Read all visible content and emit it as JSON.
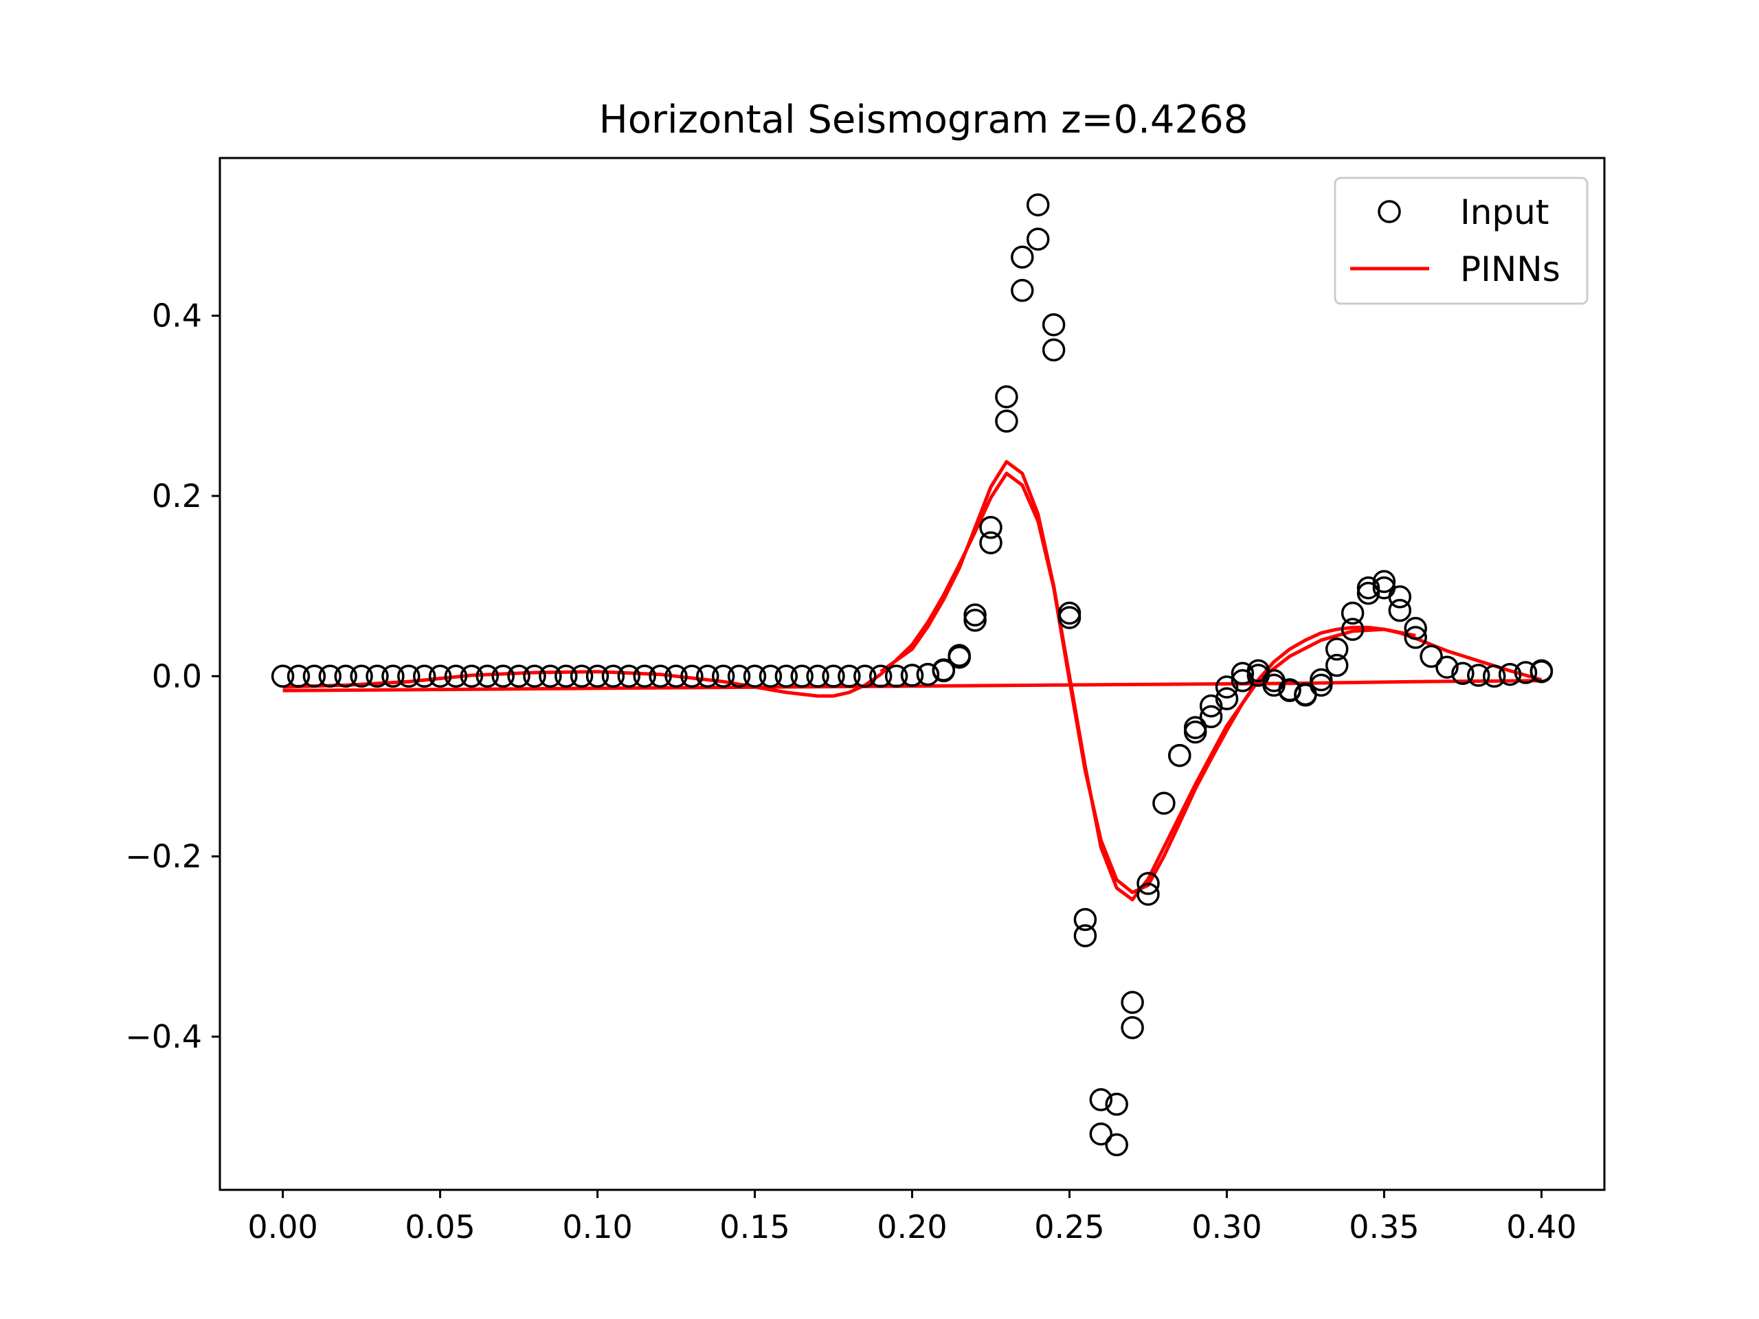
{
  "chart_data": {
    "type": "line",
    "title": "Horizontal Seismogram z=0.4268",
    "xlabel": "",
    "ylabel": "",
    "xlim": [
      -0.02,
      0.42
    ],
    "ylim": [
      -0.57,
      0.575
    ],
    "xticks": [
      "0.00",
      "0.05",
      "0.10",
      "0.15",
      "0.20",
      "0.25",
      "0.30",
      "0.35",
      "0.40"
    ],
    "xtick_values": [
      0.0,
      0.05,
      0.1,
      0.15,
      0.2,
      0.25,
      0.3,
      0.35,
      0.4
    ],
    "yticks": [
      "−0.4",
      "−0.2",
      "0.0",
      "0.2",
      "0.4"
    ],
    "ytick_values": [
      -0.4,
      -0.2,
      0.0,
      0.2,
      0.4
    ],
    "grid": false,
    "legend_position": "top-right",
    "series": [
      {
        "name": "Input",
        "style": "circles",
        "color": "#000000",
        "x": [
          0.0,
          0.005,
          0.01,
          0.015,
          0.02,
          0.025,
          0.03,
          0.035,
          0.04,
          0.045,
          0.05,
          0.055,
          0.06,
          0.065,
          0.07,
          0.075,
          0.08,
          0.085,
          0.09,
          0.095,
          0.1,
          0.105,
          0.11,
          0.115,
          0.12,
          0.125,
          0.13,
          0.135,
          0.14,
          0.145,
          0.15,
          0.155,
          0.16,
          0.165,
          0.17,
          0.175,
          0.18,
          0.185,
          0.19,
          0.195,
          0.2,
          0.205,
          0.21,
          0.215,
          0.22,
          0.225,
          0.23,
          0.235,
          0.24,
          0.245,
          0.25,
          0.255,
          0.26,
          0.265,
          0.27,
          0.275,
          0.28,
          0.285,
          0.29,
          0.295,
          0.3,
          0.305,
          0.31,
          0.315,
          0.32,
          0.325,
          0.33,
          0.335,
          0.34,
          0.345,
          0.35,
          0.355,
          0.36,
          0.365,
          0.37,
          0.375,
          0.38,
          0.385,
          0.39,
          0.395,
          0.4
        ],
        "y": [
          0.0,
          0.0,
          0.0,
          0.0,
          0.0,
          0.0,
          0.0,
          0.0,
          0.0,
          0.0,
          0.0,
          0.0,
          0.0,
          0.0,
          0.0,
          0.0,
          0.0,
          0.0,
          0.0,
          0.0,
          0.0,
          0.0,
          0.0,
          0.0,
          0.0,
          0.0,
          0.0,
          0.0,
          0.0,
          0.0,
          0.0,
          0.0,
          0.0,
          0.0,
          0.0,
          0.0,
          0.0,
          0.0,
          0.0,
          0.0,
          0.001,
          0.002,
          0.006,
          0.023,
          0.068,
          0.165,
          0.31,
          0.465,
          0.523,
          0.39,
          0.07,
          -0.27,
          -0.47,
          -0.52,
          -0.362,
          -0.23,
          -0.141,
          -0.088,
          -0.057,
          -0.033,
          -0.012,
          0.003,
          0.006,
          -0.005,
          -0.015,
          -0.021,
          -0.004,
          0.03,
          0.07,
          0.098,
          0.105,
          0.088,
          0.053,
          0.022,
          0.01,
          0.003,
          0.001,
          0.0,
          0.002,
          0.004,
          0.006
        ]
      },
      {
        "name": "",
        "style": "circles",
        "color": "#000000",
        "x": [
          0.2,
          0.205,
          0.21,
          0.215,
          0.22,
          0.225,
          0.23,
          0.235,
          0.24,
          0.245,
          0.25,
          0.255,
          0.26,
          0.265,
          0.27,
          0.275,
          0.285,
          0.29,
          0.295,
          0.3,
          0.305,
          0.31,
          0.315,
          0.32,
          0.325,
          0.33,
          0.335,
          0.34,
          0.345,
          0.35,
          0.355,
          0.36,
          0.4
        ],
        "y": [
          0.001,
          0.002,
          0.007,
          0.021,
          0.062,
          0.148,
          0.283,
          0.428,
          0.485,
          0.362,
          0.065,
          -0.288,
          -0.508,
          -0.475,
          -0.39,
          -0.242,
          -0.088,
          -0.062,
          -0.045,
          -0.025,
          -0.005,
          0.001,
          -0.01,
          -0.016,
          -0.02,
          -0.01,
          0.012,
          0.052,
          0.092,
          0.098,
          0.073,
          0.043,
          0.005
        ]
      },
      {
        "name": "PINNs",
        "style": "line",
        "color": "#ff0000",
        "x": [
          0.0,
          0.02,
          0.04,
          0.06,
          0.08,
          0.1,
          0.12,
          0.14,
          0.15,
          0.16,
          0.17,
          0.175,
          0.18,
          0.185,
          0.19,
          0.195,
          0.2,
          0.205,
          0.21,
          0.215,
          0.22,
          0.225,
          0.23,
          0.235,
          0.24,
          0.245,
          0.25,
          0.255,
          0.26,
          0.265,
          0.27,
          0.275,
          0.28,
          0.285,
          0.29,
          0.295,
          0.3,
          0.305,
          0.31,
          0.315,
          0.32,
          0.325,
          0.33,
          0.335,
          0.34,
          0.345,
          0.35,
          0.355,
          0.36,
          0.365,
          0.37,
          0.38,
          0.39,
          0.4
        ],
        "y": [
          -0.012,
          -0.01,
          -0.006,
          0.001,
          0.004,
          0.005,
          0.002,
          -0.006,
          -0.012,
          -0.018,
          -0.022,
          -0.022,
          -0.018,
          -0.01,
          0.002,
          0.018,
          0.035,
          0.06,
          0.09,
          0.124,
          0.16,
          0.198,
          0.225,
          0.212,
          0.172,
          0.098,
          -0.005,
          -0.105,
          -0.182,
          -0.226,
          -0.24,
          -0.232,
          -0.2,
          -0.163,
          -0.125,
          -0.092,
          -0.06,
          -0.03,
          -0.004,
          0.016,
          0.03,
          0.04,
          0.048,
          0.052,
          0.054,
          0.054,
          0.052,
          0.048,
          0.042,
          0.035,
          0.028,
          0.017,
          0.006,
          -0.004
        ]
      },
      {
        "name": "",
        "style": "line",
        "color": "#ff0000",
        "x": [
          0.0,
          0.04,
          0.08,
          0.12,
          0.16,
          0.2,
          0.24,
          0.28,
          0.32,
          0.36,
          0.4
        ],
        "y": [
          -0.016,
          -0.015,
          -0.014,
          -0.013,
          -0.012,
          -0.011,
          -0.01,
          -0.009,
          -0.008,
          -0.006,
          -0.005
        ]
      },
      {
        "name": "",
        "style": "line",
        "color": "#ff0000",
        "x": [
          0.19,
          0.2,
          0.205,
          0.21,
          0.215,
          0.22,
          0.225,
          0.23,
          0.235,
          0.24,
          0.245,
          0.25,
          0.255,
          0.26,
          0.265,
          0.27,
          0.275,
          0.28,
          0.29,
          0.3,
          0.31,
          0.32,
          0.33,
          0.34,
          0.35,
          0.36
        ],
        "y": [
          0.005,
          0.03,
          0.055,
          0.085,
          0.12,
          0.165,
          0.21,
          0.238,
          0.225,
          0.18,
          0.1,
          0.0,
          -0.1,
          -0.19,
          -0.235,
          -0.248,
          -0.225,
          -0.19,
          -0.12,
          -0.055,
          -0.005,
          0.022,
          0.04,
          0.05,
          0.052,
          0.045
        ]
      }
    ]
  }
}
